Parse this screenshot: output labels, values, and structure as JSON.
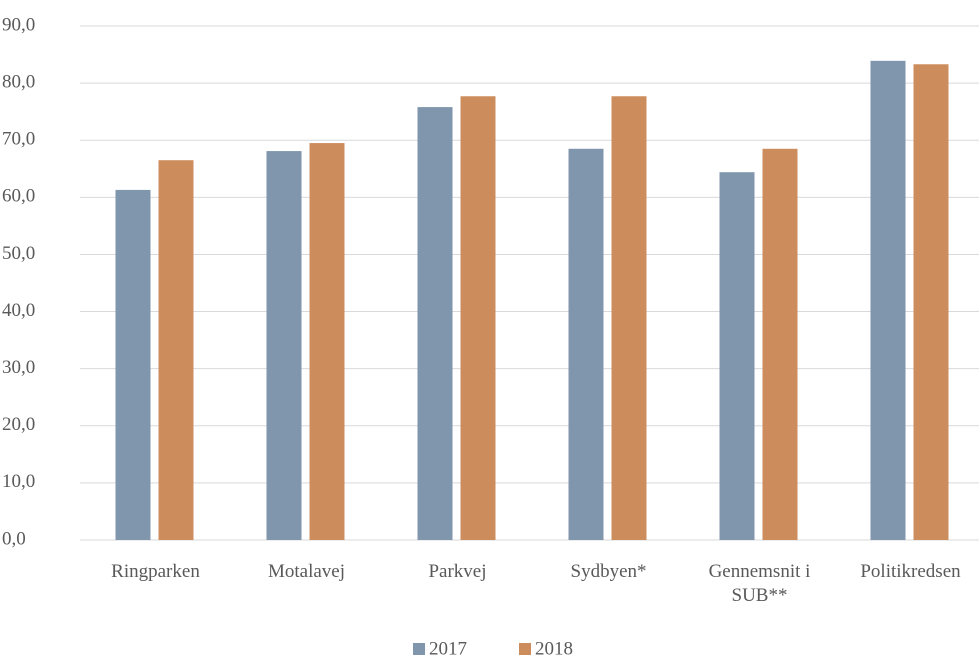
{
  "chart_data": {
    "type": "bar",
    "categories": [
      "Ringparken",
      "Motalavej",
      "Parkvej",
      "Sydbyen*",
      "Gennemsnit i SUB**",
      "Politikredsen"
    ],
    "series": [
      {
        "name": "2017",
        "color": "#7f96ad",
        "values": [
          61.3,
          68.1,
          75.8,
          68.5,
          64.4,
          83.9
        ]
      },
      {
        "name": "2018",
        "color": "#cd8c5c",
        "values": [
          66.5,
          69.5,
          77.7,
          77.7,
          68.5,
          83.3
        ]
      }
    ],
    "ylim": [
      0,
      90
    ],
    "yticks": [
      {
        "value": 0,
        "label": "0,0"
      },
      {
        "value": 10,
        "label": "10,0"
      },
      {
        "value": 20,
        "label": "20,0"
      },
      {
        "value": 30,
        "label": "30,0"
      },
      {
        "value": 40,
        "label": "40,0"
      },
      {
        "value": 50,
        "label": "50,0"
      },
      {
        "value": 60,
        "label": "60,0"
      },
      {
        "value": 70,
        "label": "70,0"
      },
      {
        "value": 80,
        "label": "80,0"
      },
      {
        "value": 90,
        "label": "90,0"
      }
    ],
    "grid": true,
    "legend": "bottom"
  }
}
